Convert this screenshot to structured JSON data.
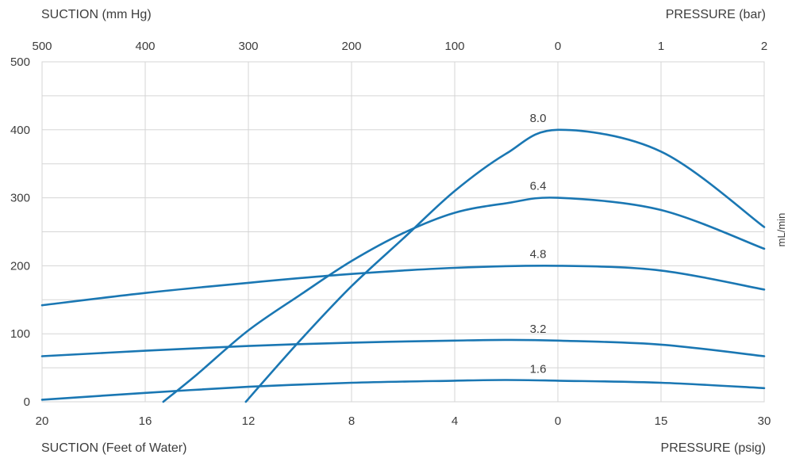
{
  "chart_data": {
    "type": "line",
    "top_left_axis_title": "SUCTION (mm Hg)",
    "top_right_axis_title": "PRESSURE (bar)",
    "bottom_left_axis_title": "SUCTION (Feet of Water)",
    "bottom_right_axis_title": "PRESSURE (psig)",
    "ylabel": "mL/min",
    "ylim": [
      0,
      500
    ],
    "y_ticks": [
      "0",
      "100",
      "200",
      "300",
      "400",
      "500"
    ],
    "y_tick_values": [
      0,
      100,
      200,
      300,
      400,
      500
    ],
    "x_label_note": "x values use the bottom axis; values left of 0 are suction (Feet of Water), values right of 0 are pressure (psig)",
    "bottom_ticks": [
      {
        "label": "20",
        "value": -20
      },
      {
        "label": "16",
        "value": -16
      },
      {
        "label": "12",
        "value": -12
      },
      {
        "label": "8",
        "value": -8
      },
      {
        "label": "4",
        "value": -4
      },
      {
        "label": "0",
        "value": 0
      },
      {
        "label": "15",
        "value": 15
      },
      {
        "label": "30",
        "value": 30
      }
    ],
    "top_ticks": [
      {
        "label": "500",
        "value": -20
      },
      {
        "label": "400",
        "value": -16
      },
      {
        "label": "300",
        "value": -12
      },
      {
        "label": "200",
        "value": -8
      },
      {
        "label": "100",
        "value": -4
      },
      {
        "label": "0",
        "value": 0
      },
      {
        "label": "1",
        "value": 15
      },
      {
        "label": "2",
        "value": 30
      }
    ],
    "grid": true,
    "line_color": "#1a77b3",
    "series": [
      {
        "name": "1.6",
        "points": [
          [
            -20,
            3
          ],
          [
            -16,
            13
          ],
          [
            -12,
            22
          ],
          [
            -8,
            28
          ],
          [
            -4,
            31
          ],
          [
            -2,
            32
          ],
          [
            0,
            31
          ],
          [
            15,
            28
          ],
          [
            30,
            20
          ]
        ]
      },
      {
        "name": "3.2",
        "points": [
          [
            -20,
            67
          ],
          [
            -16,
            75
          ],
          [
            -12,
            82
          ],
          [
            -8,
            87
          ],
          [
            -4,
            90
          ],
          [
            -2,
            91
          ],
          [
            0,
            90
          ],
          [
            15,
            84
          ],
          [
            30,
            67
          ]
        ]
      },
      {
        "name": "4.8",
        "points": [
          [
            -20,
            142
          ],
          [
            -16,
            160
          ],
          [
            -12,
            175
          ],
          [
            -8,
            188
          ],
          [
            -4,
            197
          ],
          [
            0,
            200
          ],
          [
            15,
            193
          ],
          [
            30,
            165
          ]
        ]
      },
      {
        "name": "6.4",
        "points": [
          [
            -15.3,
            0
          ],
          [
            -14,
            40
          ],
          [
            -12,
            105
          ],
          [
            -10,
            157
          ],
          [
            -8,
            207
          ],
          [
            -6,
            248
          ],
          [
            -4,
            278
          ],
          [
            -2,
            292
          ],
          [
            0,
            300
          ],
          [
            15,
            282
          ],
          [
            30,
            225
          ]
        ]
      },
      {
        "name": "8.0",
        "points": [
          [
            -12.1,
            0
          ],
          [
            -10,
            90
          ],
          [
            -8,
            170
          ],
          [
            -6,
            240
          ],
          [
            -4,
            310
          ],
          [
            -2,
            365
          ],
          [
            0,
            400
          ],
          [
            15,
            368
          ],
          [
            30,
            257
          ]
        ]
      }
    ]
  }
}
